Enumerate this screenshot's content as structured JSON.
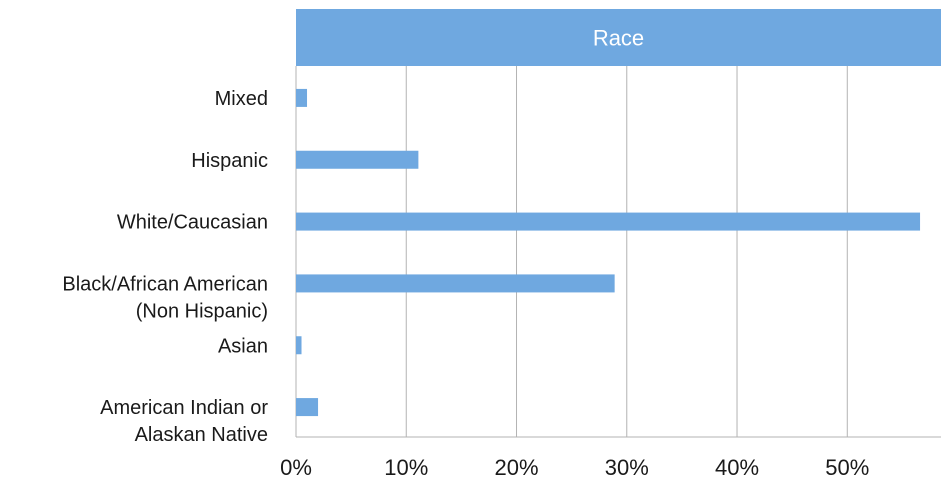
{
  "chart_data": {
    "type": "bar",
    "orientation": "horizontal",
    "title": "Race",
    "categories": [
      "Mixed",
      "Hispanic",
      "White/Caucasian",
      "Black/African American (Non Hispanic)",
      "Asian",
      "American Indian or Alaskan Native"
    ],
    "category_lines": [
      [
        "Mixed"
      ],
      [
        "Hispanic"
      ],
      [
        "White/Caucasian"
      ],
      [
        "Black/African American",
        "(Non Hispanic)"
      ],
      [
        "Asian"
      ],
      [
        "American Indian or",
        "Alaskan Native"
      ]
    ],
    "values": [
      1.0,
      11.1,
      56.6,
      28.9,
      0.5,
      2.0
    ],
    "xlim": [
      0,
      58.5
    ],
    "xticks": [
      0,
      10,
      20,
      30,
      40,
      50
    ],
    "xtick_labels": [
      "0%",
      "10%",
      "20%",
      "30%",
      "40%",
      "50%"
    ],
    "xlabel": "",
    "ylabel": "",
    "grid": "vertical",
    "legend": "none",
    "colors": {
      "bar": "#6fa8e0",
      "title_band": "#6fa8e0",
      "title_text": "#ffffff",
      "grid": "#b3b3b3",
      "text": "#1a1a1a"
    }
  }
}
